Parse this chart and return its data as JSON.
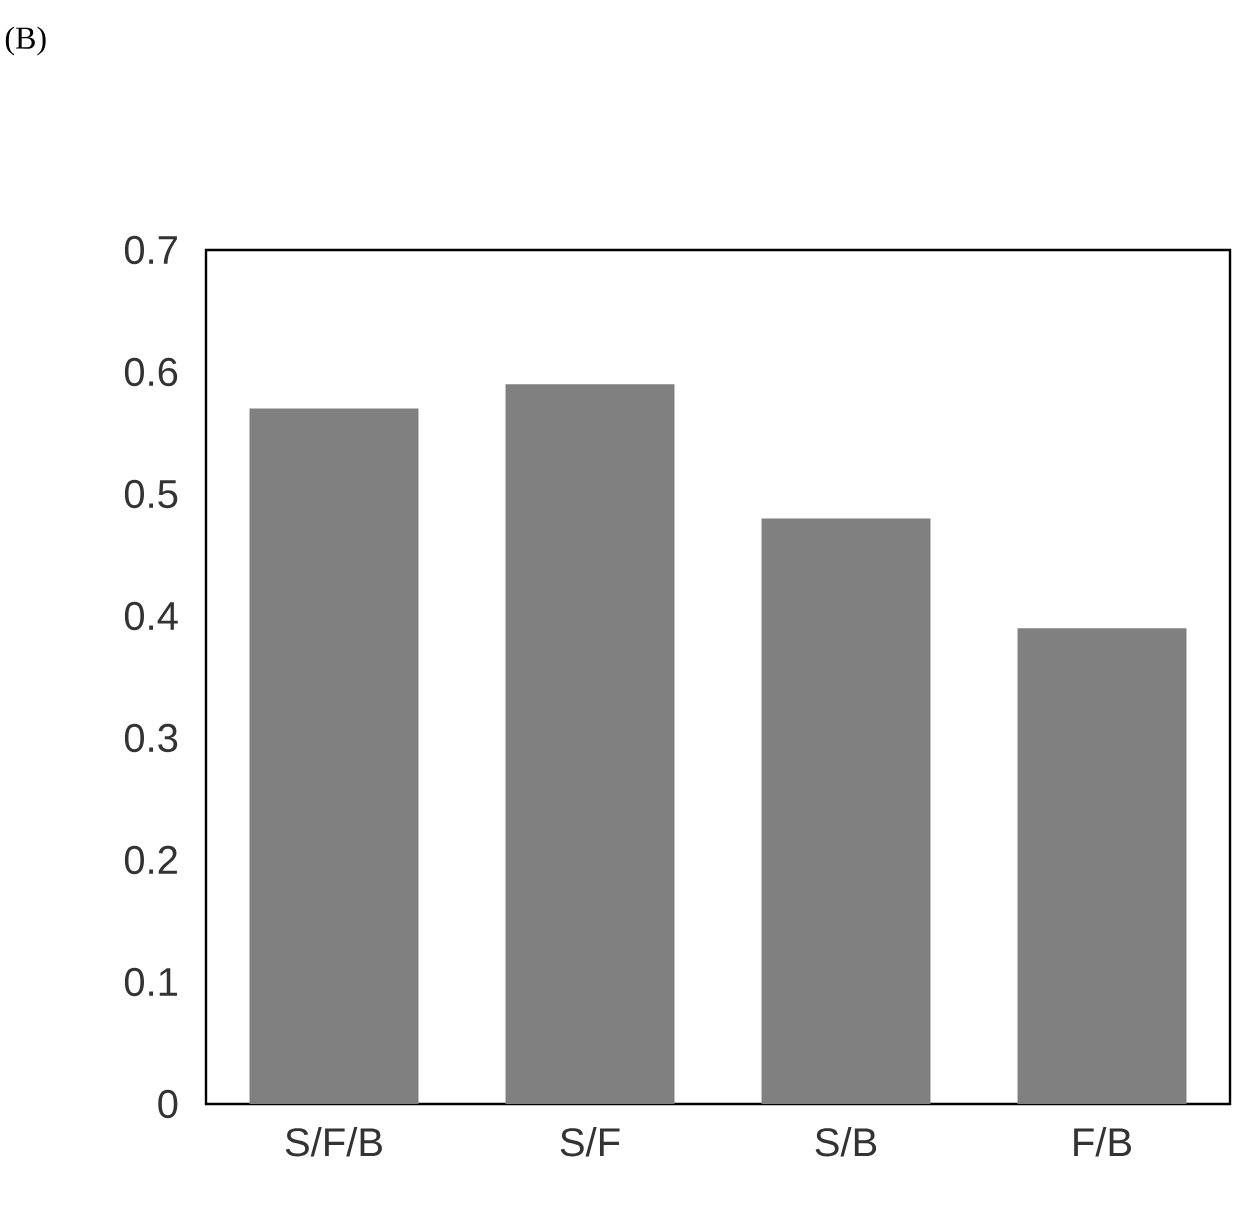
{
  "chart_data": {
    "type": "bar",
    "title": "(B)",
    "categories": [
      "S/F/B",
      "S/F",
      "S/B",
      "F/B"
    ],
    "values": [
      0.57,
      0.59,
      0.48,
      0.39
    ],
    "color": "#808080",
    "ylim": [
      0,
      0.7
    ],
    "yticks": [
      0,
      0.1,
      0.2,
      0.3,
      0.4,
      0.5,
      0.6,
      0.7
    ]
  }
}
